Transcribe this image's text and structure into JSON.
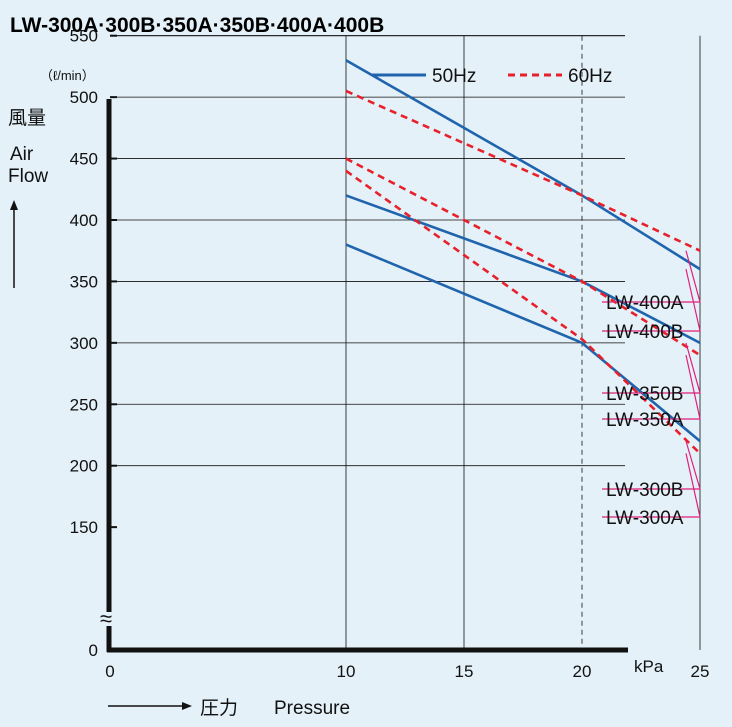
{
  "title": "LW-300A·300B·350A·350B·400A·400B",
  "y_unit": "（ℓ/min）",
  "y_label_ja": "風量",
  "y_label_en_1": "Air",
  "y_label_en_2": "Flow",
  "x_unit": "kPa",
  "x_label_ja": "圧力",
  "x_label_en": "Pressure",
  "axis_break_symbol": "≈",
  "colors": {
    "hz50": "#1f64ad",
    "hz60": "#e8202a",
    "leader": "#e0207a",
    "background": "#e4f1f9"
  },
  "chart_data": {
    "type": "line",
    "title": "LW-300A·300B·350A·350B·400A·400B",
    "xlabel": "圧力 Pressure (kPa)",
    "ylabel": "風量 Air Flow (ℓ/min)",
    "xlim": [
      0,
      25
    ],
    "ylim": [
      0,
      550
    ],
    "y_axis_break": [
      0,
      150
    ],
    "x_ticks": [
      0,
      10,
      15,
      20,
      25
    ],
    "y_ticks": [
      0,
      150,
      200,
      250,
      300,
      350,
      400,
      450,
      500,
      550
    ],
    "grid": true,
    "legend_position": "top-right",
    "legend": [
      {
        "label": "50Hz",
        "style": "solid",
        "color": "#1f64ad"
      },
      {
        "label": "60Hz",
        "style": "dashed",
        "color": "#e8202a"
      }
    ],
    "series": [
      {
        "name": "LW-400B",
        "freq": "50Hz",
        "x": [
          10,
          20,
          25
        ],
        "y": [
          530,
          420,
          360
        ]
      },
      {
        "name": "LW-400A",
        "freq": "60Hz",
        "x": [
          10,
          20,
          25
        ],
        "y": [
          505,
          420,
          375
        ]
      },
      {
        "name": "LW-350B",
        "freq": "50Hz",
        "x": [
          10,
          20,
          25
        ],
        "y": [
          420,
          350,
          300
        ]
      },
      {
        "name": "LW-350A",
        "freq": "60Hz",
        "x": [
          10,
          20,
          25
        ],
        "y": [
          450,
          350,
          290
        ]
      },
      {
        "name": "LW-300B",
        "freq": "50Hz",
        "x": [
          10,
          20,
          25
        ],
        "y": [
          380,
          300,
          220
        ]
      },
      {
        "name": "LW-300A",
        "freq": "60Hz",
        "x": [
          10,
          20,
          25
        ],
        "y": [
          440,
          303,
          210
        ]
      }
    ],
    "series_labels": [
      "LW-400A",
      "LW-400B",
      "LW-350B",
      "LW-350A",
      "LW-300B",
      "LW-300A"
    ]
  }
}
